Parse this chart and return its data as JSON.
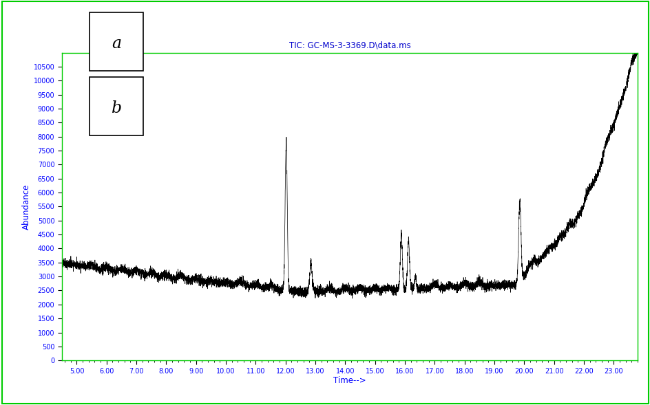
{
  "title": "TIC: GC-MS-3-3369.D\\data.ms",
  "xlabel": "Time-->",
  "ylabel": "Abundance",
  "xmin": 4.5,
  "xmax": 23.8,
  "ymin": 0,
  "ymax": 11000,
  "yticks": [
    0,
    500,
    1000,
    1500,
    2000,
    2500,
    3000,
    3500,
    4000,
    4500,
    5000,
    5500,
    6000,
    6500,
    7000,
    7500,
    8000,
    8500,
    9000,
    9500,
    10000,
    10500
  ],
  "xticks": [
    5.0,
    6.0,
    7.0,
    8.0,
    9.0,
    10.0,
    11.0,
    12.0,
    13.0,
    14.0,
    15.0,
    16.0,
    17.0,
    18.0,
    19.0,
    20.0,
    21.0,
    22.0,
    23.0
  ],
  "title_color": "#0000CC",
  "axis_label_color": "#0000FF",
  "tick_label_color": "#0000FF",
  "border_color": "#00CC00",
  "line_color": "#000000",
  "background_color": "#FFFFFF"
}
